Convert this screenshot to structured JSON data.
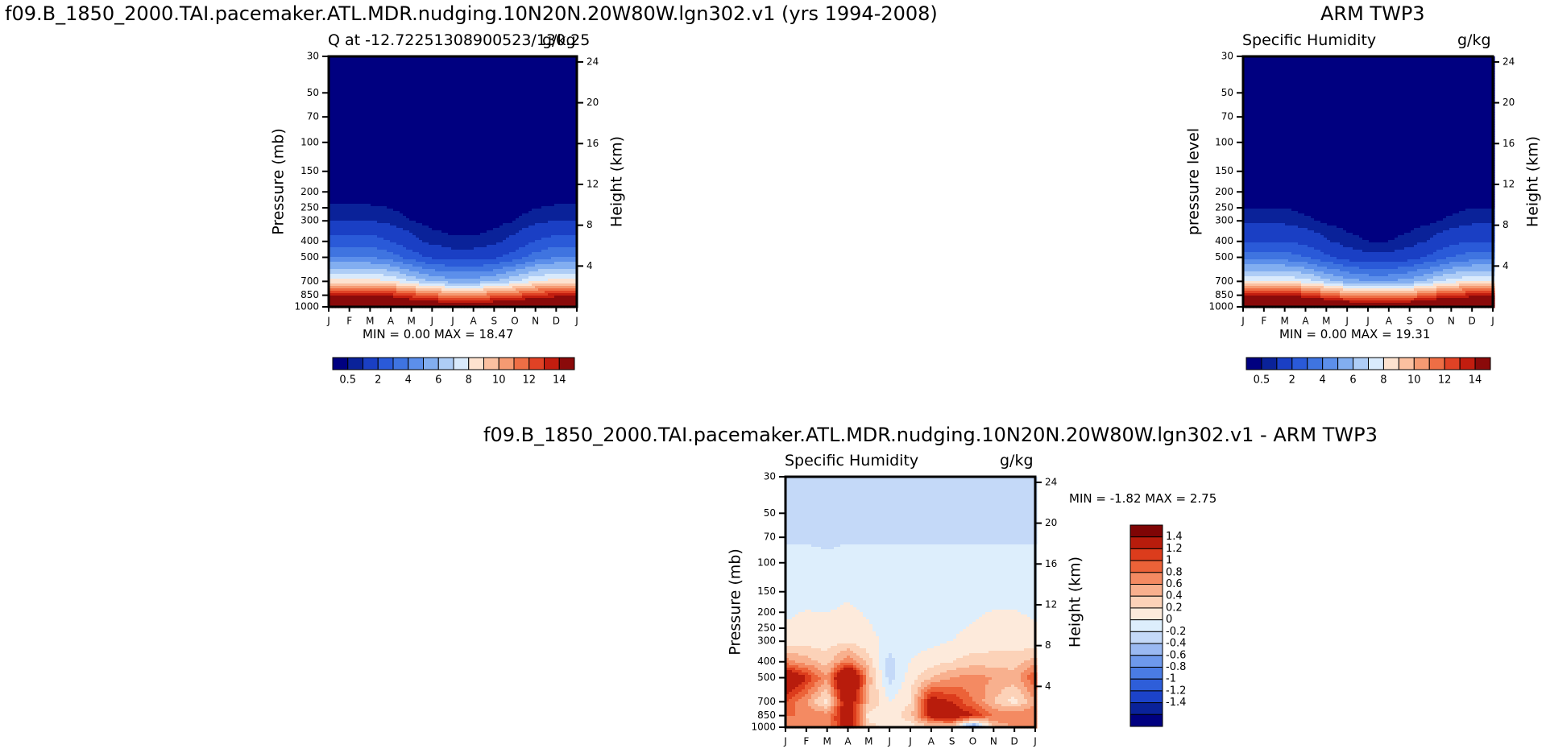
{
  "palettes": {
    "abs": [
      "#000080",
      "#0a2299",
      "#1a3fc4",
      "#2a5ad8",
      "#3f74e0",
      "#5c8fea",
      "#82aef0",
      "#aecdf6",
      "#d9eafc",
      "#fde2cf",
      "#fbc0a0",
      "#f59a72",
      "#ee6e45",
      "#e04225",
      "#c21d0f",
      "#8a0a0a"
    ],
    "diff": [
      "#000080",
      "#0a2299",
      "#1c43c9",
      "#2e5ed9",
      "#4a7ce4",
      "#6e99ec",
      "#9ab9f2",
      "#c4d9f8",
      "#ddeefc",
      "#fdeadb",
      "#fcd2b8",
      "#f8b08e",
      "#f48a62",
      "#ec6238",
      "#dc3c1c",
      "#b81c0c",
      "#7f0505"
    ]
  },
  "panels": [
    {
      "id": "model",
      "figure_title": "f09.B_1850_2000.TAI.pacemaker.ATL.MDR.nudging.10N20N.20W80W.lgn302.v1 (yrs 1994-2008)",
      "left_string": "Q at -12.72251308900523/130.25",
      "right_string": "g/kg",
      "minmax": "MIN =    0.00 MAX =   18.47",
      "ylabel": "Pressure (mb)",
      "ylabel_right": "Height (km)"
    },
    {
      "id": "obs",
      "figure_title": "ARM TWP3",
      "left_string": "Specific Humidity",
      "right_string": "g/kg",
      "minmax": "MIN =    0.00 MAX =   19.31",
      "ylabel": "pressure level",
      "ylabel_right": "Height (km)"
    },
    {
      "id": "diff",
      "figure_title": "f09.B_1850_2000.TAI.pacemaker.ATL.MDR.nudging.10N20N.20W80W.lgn302.v1 - ARM TWP3",
      "left_string": "Specific Humidity",
      "right_string": "g/kg",
      "minmax": "MIN =   -1.82 MAX =    2.75",
      "ylabel": "Pressure (mb)",
      "ylabel_right": "Height (km)"
    }
  ],
  "chart_data": [
    {
      "type": "heatmap",
      "title": "Q at -12.72251308900523/130.25",
      "units": "g/kg",
      "x": [
        "J",
        "F",
        "M",
        "A",
        "M",
        "J",
        "J",
        "A",
        "S",
        "O",
        "N",
        "D",
        "J"
      ],
      "y_pressure_ticks": [
        30,
        50,
        70,
        100,
        150,
        200,
        250,
        300,
        400,
        500,
        700,
        850,
        1000
      ],
      "y_height_ticks_km": [
        4,
        8,
        12,
        16,
        20,
        24
      ],
      "levels": [
        0.5,
        1,
        2,
        3,
        4,
        5,
        6,
        7,
        8,
        9,
        10,
        11,
        12,
        13,
        14
      ],
      "colorbar_labels": [
        "0.5",
        "2",
        "4",
        "6",
        "8",
        "10",
        "12",
        "14"
      ],
      "values_by_pressure": {
        "1000": [
          17.5,
          17.5,
          17.8,
          17.6,
          16.8,
          16.3,
          15.8,
          15.6,
          16.1,
          16.6,
          17.1,
          17.5,
          17.5
        ],
        "850": [
          13.5,
          13.5,
          13.8,
          13.5,
          12.5,
          11.5,
          11.0,
          11.0,
          11.5,
          12.0,
          13.0,
          13.5,
          13.5
        ],
        "700": [
          8.5,
          8.5,
          8.5,
          8.0,
          7.0,
          6.0,
          5.5,
          5.5,
          6.0,
          7.0,
          8.0,
          8.5,
          8.5
        ],
        "500": [
          4.0,
          4.0,
          4.0,
          3.5,
          2.5,
          1.8,
          1.5,
          1.5,
          1.8,
          2.5,
          3.5,
          4.0,
          4.0
        ],
        "400": [
          2.5,
          2.5,
          2.5,
          2.0,
          1.3,
          0.8,
          0.6,
          0.6,
          0.8,
          1.3,
          2.0,
          2.5,
          2.5
        ],
        "300": [
          1.0,
          1.0,
          1.0,
          0.8,
          0.5,
          0.3,
          0.2,
          0.2,
          0.3,
          0.5,
          0.8,
          1.0,
          1.0
        ],
        "200": [
          0.1,
          0.1,
          0.1,
          0.1,
          0.05,
          0.02,
          0.02,
          0.02,
          0.02,
          0.05,
          0.1,
          0.1,
          0.1
        ],
        "100": [
          0,
          0,
          0,
          0,
          0,
          0,
          0,
          0,
          0,
          0,
          0,
          0,
          0
        ],
        "30": [
          0,
          0,
          0,
          0,
          0,
          0,
          0,
          0,
          0,
          0,
          0,
          0,
          0
        ]
      },
      "min": 0.0,
      "max": 18.47
    },
    {
      "type": "heatmap",
      "title": "Specific Humidity",
      "units": "g/kg",
      "x": [
        "J",
        "F",
        "M",
        "A",
        "M",
        "J",
        "J",
        "A",
        "S",
        "O",
        "N",
        "D",
        "J"
      ],
      "y_pressure_ticks": [
        30,
        50,
        70,
        100,
        150,
        200,
        250,
        300,
        400,
        500,
        700,
        850,
        1000
      ],
      "y_height_ticks_km": [
        4,
        8,
        12,
        16,
        20,
        24
      ],
      "levels": [
        0.5,
        1,
        2,
        3,
        4,
        5,
        6,
        7,
        8,
        9,
        10,
        11,
        12,
        13,
        14
      ],
      "colorbar_labels": [
        "0.5",
        "2",
        "4",
        "6",
        "8",
        "10",
        "12",
        "14"
      ],
      "values_by_pressure": {
        "1000": [
          18.0,
          18.0,
          18.5,
          18.2,
          17.2,
          16.5,
          16.0,
          15.8,
          16.3,
          17.0,
          17.8,
          18.0,
          18.0
        ],
        "850": [
          13.5,
          13.5,
          13.8,
          13.2,
          12.0,
          11.0,
          10.5,
          10.5,
          11.0,
          12.0,
          13.0,
          13.5,
          13.5
        ],
        "700": [
          8.0,
          8.0,
          8.0,
          7.5,
          6.5,
          5.5,
          5.0,
          5.0,
          5.5,
          6.5,
          7.5,
          8.0,
          8.0
        ],
        "500": [
          3.5,
          3.5,
          3.5,
          3.0,
          2.2,
          1.5,
          1.2,
          1.2,
          1.5,
          2.2,
          3.0,
          3.5,
          3.5
        ],
        "400": [
          2.0,
          2.0,
          2.0,
          1.7,
          1.1,
          0.7,
          0.5,
          0.5,
          0.7,
          1.1,
          1.7,
          2.0,
          2.0
        ],
        "300": [
          0.8,
          0.8,
          0.8,
          0.6,
          0.4,
          0.25,
          0.2,
          0.2,
          0.25,
          0.4,
          0.6,
          0.8,
          0.8
        ],
        "200": [
          0.1,
          0.1,
          0.1,
          0.08,
          0.04,
          0.02,
          0.02,
          0.02,
          0.02,
          0.04,
          0.08,
          0.1,
          0.1
        ],
        "100": [
          0,
          0,
          0,
          0,
          0,
          0,
          0,
          0,
          0,
          0,
          0,
          0,
          0
        ],
        "30": [
          0,
          0,
          0,
          0,
          0,
          0,
          0,
          0,
          0,
          0,
          0,
          0,
          0
        ]
      },
      "min": 0.0,
      "max": 19.31
    },
    {
      "type": "heatmap",
      "title": "Specific Humidity",
      "units": "g/kg",
      "x": [
        "J",
        "F",
        "M",
        "A",
        "M",
        "J",
        "J",
        "A",
        "S",
        "O",
        "N",
        "D",
        "J"
      ],
      "y_pressure_ticks": [
        30,
        50,
        70,
        100,
        150,
        200,
        250,
        300,
        400,
        500,
        700,
        850,
        1000
      ],
      "y_height_ticks_km": [
        4,
        8,
        12,
        16,
        20,
        24
      ],
      "levels": [
        -1.4,
        -1.2,
        -1,
        -0.8,
        -0.6,
        -0.4,
        -0.2,
        0,
        0.2,
        0.4,
        0.6,
        0.8,
        1,
        1.2,
        1.4
      ],
      "colorbar_labels": [
        "1.4",
        "1.2",
        "1",
        "0.8",
        "0.6",
        "0.4",
        "0.2",
        "0",
        "-0.2",
        "-0.4",
        "-0.6",
        "-0.8",
        "-1",
        "-1.2",
        "-1.4"
      ],
      "values_by_pressure": {
        "1000": [
          0.8,
          0.9,
          0.9,
          1.6,
          0.5,
          0.3,
          0.3,
          0.4,
          0.4,
          -0.8,
          0.6,
          0.8,
          0.8
        ],
        "850": [
          1.0,
          1.0,
          0.9,
          1.7,
          0.3,
          0.3,
          0.5,
          1.6,
          1.8,
          1.4,
          1.0,
          1.0,
          1.0
        ],
        "700": [
          1.2,
          0.8,
          0.3,
          1.8,
          0.6,
          0.2,
          0.4,
          1.6,
          1.4,
          1.0,
          0.6,
          0.3,
          0.8
        ],
        "500": [
          2.0,
          1.4,
          0.8,
          2.4,
          0.7,
          -0.1,
          0.3,
          0.6,
          0.8,
          0.9,
          0.8,
          0.7,
          1.2
        ],
        "400": [
          0.9,
          0.7,
          0.5,
          1.0,
          0.5,
          -0.1,
          0.2,
          0.3,
          0.4,
          0.5,
          0.5,
          0.5,
          0.7
        ],
        "300": [
          0.25,
          0.3,
          0.3,
          0.35,
          0.25,
          0.15,
          0.15,
          0.15,
          0.2,
          0.25,
          0.3,
          0.3,
          0.25
        ],
        "100": [
          0.05,
          0.05,
          0.02,
          0.05,
          0.05,
          0.05,
          0.05,
          0.05,
          0.05,
          0.05,
          0.05,
          0.05,
          0.05
        ],
        "70": [
          -0.02,
          -0.02,
          -0.02,
          -0.02,
          -0.02,
          -0.02,
          -0.02,
          -0.02,
          -0.02,
          -0.02,
          -0.02,
          -0.02,
          -0.02
        ],
        "30": [
          -0.02,
          -0.02,
          -0.02,
          -0.02,
          -0.02,
          -0.02,
          -0.02,
          -0.02,
          -0.02,
          -0.02,
          -0.02,
          -0.02,
          -0.02
        ]
      },
      "min": -1.82,
      "max": 2.75
    }
  ]
}
